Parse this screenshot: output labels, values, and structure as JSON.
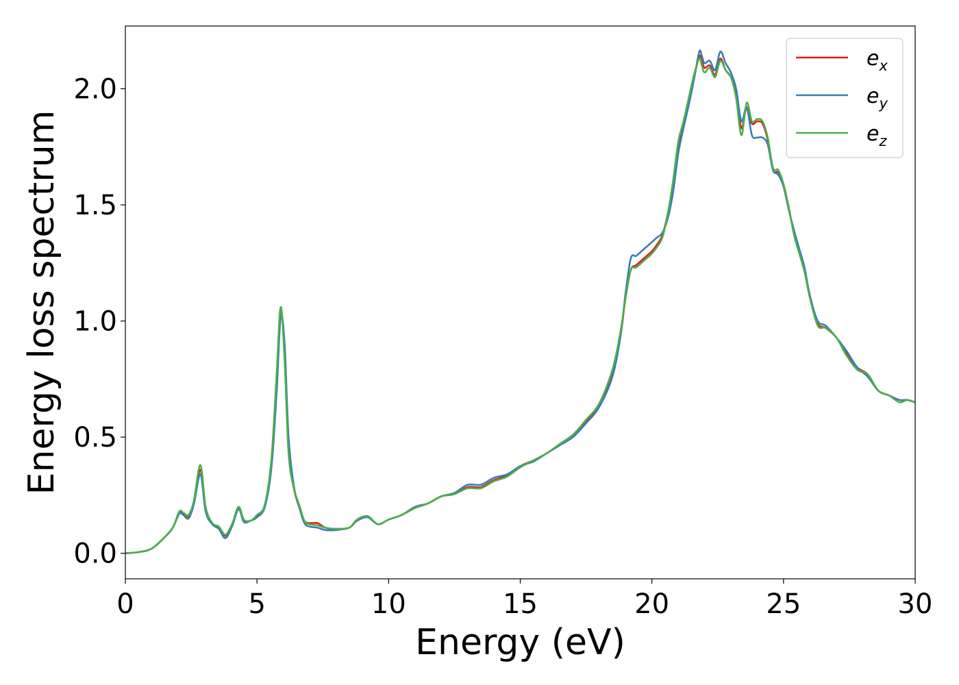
{
  "chart_data": {
    "type": "line",
    "xlabel": "Energy (eV)",
    "ylabel": "Energy loss spectrum",
    "xlim": [
      0,
      30
    ],
    "ylim": [
      -0.11,
      2.27
    ],
    "x_ticks": [
      0,
      5,
      10,
      15,
      20,
      25,
      30
    ],
    "x_tick_labels": [
      "0",
      "5",
      "10",
      "15",
      "20",
      "25",
      "30"
    ],
    "y_ticks": [
      0.0,
      0.5,
      1.0,
      1.5,
      2.0
    ],
    "y_tick_labels": [
      "0.0",
      "0.5",
      "1.0",
      "1.5",
      "2.0"
    ],
    "grid": false,
    "legend_position": "top-right",
    "series": [
      {
        "name": "e_x",
        "label_base": "e",
        "label_sub": "x",
        "color": "#e41a1c",
        "x": [
          0,
          0.5,
          1.0,
          1.5,
          1.8,
          2.05,
          2.2,
          2.4,
          2.6,
          2.85,
          3.05,
          3.3,
          3.55,
          3.8,
          4.05,
          4.3,
          4.5,
          4.75,
          5.0,
          5.3,
          5.55,
          5.75,
          5.9,
          6.05,
          6.2,
          6.4,
          6.6,
          6.8,
          7.0,
          7.3,
          7.6,
          8.0,
          8.5,
          8.8,
          9.2,
          9.6,
          10.0,
          10.5,
          11.0,
          11.5,
          12.0,
          12.5,
          13.0,
          13.5,
          14.0,
          14.5,
          15.0,
          15.5,
          16.0,
          16.5,
          17.0,
          17.5,
          18.0,
          18.5,
          18.8,
          19.0,
          19.2,
          19.4,
          19.6,
          19.8,
          20.0,
          20.2,
          20.4,
          20.6,
          20.8,
          21.0,
          21.2,
          21.4,
          21.6,
          21.8,
          21.9,
          22.0,
          22.2,
          22.4,
          22.6,
          22.8,
          23.0,
          23.2,
          23.4,
          23.6,
          23.8,
          24.0,
          24.2,
          24.4,
          24.6,
          24.8,
          25.0,
          25.2,
          25.4,
          25.6,
          25.8,
          26.0,
          26.3,
          26.6,
          27.0,
          27.4,
          27.8,
          28.2,
          28.6,
          29.0,
          29.4,
          29.7,
          30.0
        ],
        "values": [
          0.0,
          0.005,
          0.02,
          0.07,
          0.11,
          0.175,
          0.17,
          0.16,
          0.22,
          0.36,
          0.19,
          0.13,
          0.11,
          0.075,
          0.12,
          0.195,
          0.14,
          0.14,
          0.16,
          0.21,
          0.4,
          0.75,
          1.04,
          0.85,
          0.45,
          0.28,
          0.2,
          0.14,
          0.13,
          0.13,
          0.11,
          0.105,
          0.11,
          0.14,
          0.155,
          0.125,
          0.145,
          0.165,
          0.195,
          0.215,
          0.245,
          0.255,
          0.285,
          0.285,
          0.315,
          0.335,
          0.375,
          0.4,
          0.43,
          0.47,
          0.51,
          0.57,
          0.64,
          0.77,
          0.93,
          1.1,
          1.22,
          1.24,
          1.26,
          1.28,
          1.3,
          1.33,
          1.37,
          1.46,
          1.58,
          1.75,
          1.84,
          1.95,
          2.05,
          2.14,
          2.12,
          2.09,
          2.1,
          2.06,
          2.13,
          2.08,
          2.05,
          1.98,
          1.83,
          1.92,
          1.85,
          1.86,
          1.85,
          1.78,
          1.65,
          1.64,
          1.58,
          1.48,
          1.38,
          1.3,
          1.22,
          1.11,
          0.99,
          0.97,
          0.93,
          0.86,
          0.8,
          0.77,
          0.7,
          0.68,
          0.66,
          0.66,
          0.65
        ]
      },
      {
        "name": "e_y",
        "label_base": "e",
        "label_sub": "y",
        "color": "#377eb8",
        "x": [
          0,
          0.5,
          1.0,
          1.5,
          1.8,
          2.05,
          2.2,
          2.4,
          2.6,
          2.85,
          3.05,
          3.3,
          3.55,
          3.8,
          4.05,
          4.3,
          4.5,
          4.75,
          5.0,
          5.3,
          5.55,
          5.75,
          5.9,
          6.05,
          6.2,
          6.4,
          6.6,
          6.8,
          7.0,
          7.3,
          7.6,
          8.0,
          8.5,
          8.8,
          9.2,
          9.6,
          10.0,
          10.5,
          11.0,
          11.5,
          12.0,
          12.5,
          13.0,
          13.5,
          14.0,
          14.5,
          15.0,
          15.5,
          16.0,
          16.5,
          17.0,
          17.5,
          18.0,
          18.5,
          18.8,
          19.0,
          19.2,
          19.4,
          19.6,
          19.8,
          20.0,
          20.2,
          20.4,
          20.6,
          20.8,
          21.0,
          21.2,
          21.4,
          21.6,
          21.8,
          21.9,
          22.0,
          22.2,
          22.4,
          22.6,
          22.8,
          23.0,
          23.2,
          23.4,
          23.6,
          23.8,
          24.0,
          24.2,
          24.4,
          24.6,
          24.8,
          25.0,
          25.2,
          25.4,
          25.6,
          25.8,
          26.0,
          26.3,
          26.6,
          27.0,
          27.4,
          27.8,
          28.2,
          28.6,
          29.0,
          29.4,
          29.7,
          30.0
        ],
        "values": [
          0.0,
          0.005,
          0.02,
          0.07,
          0.11,
          0.17,
          0.165,
          0.15,
          0.21,
          0.34,
          0.18,
          0.125,
          0.105,
          0.065,
          0.115,
          0.19,
          0.135,
          0.14,
          0.155,
          0.2,
          0.37,
          0.7,
          1.02,
          0.9,
          0.5,
          0.29,
          0.2,
          0.13,
          0.115,
          0.11,
          0.1,
          0.1,
          0.11,
          0.14,
          0.155,
          0.125,
          0.145,
          0.165,
          0.2,
          0.215,
          0.245,
          0.26,
          0.295,
          0.295,
          0.325,
          0.34,
          0.375,
          0.395,
          0.43,
          0.465,
          0.5,
          0.56,
          0.63,
          0.76,
          0.93,
          1.12,
          1.27,
          1.28,
          1.3,
          1.32,
          1.34,
          1.36,
          1.38,
          1.44,
          1.55,
          1.72,
          1.83,
          1.93,
          2.04,
          2.16,
          2.14,
          2.11,
          2.12,
          2.08,
          2.16,
          2.11,
          2.07,
          2.0,
          1.86,
          1.92,
          1.8,
          1.79,
          1.79,
          1.76,
          1.65,
          1.63,
          1.58,
          1.48,
          1.39,
          1.31,
          1.23,
          1.11,
          1.0,
          0.98,
          0.93,
          0.87,
          0.8,
          0.76,
          0.7,
          0.68,
          0.66,
          0.66,
          0.65
        ]
      },
      {
        "name": "e_z",
        "label_base": "e",
        "label_sub": "z",
        "color": "#4daf4a",
        "x": [
          0,
          0.5,
          1.0,
          1.5,
          1.8,
          2.05,
          2.2,
          2.4,
          2.6,
          2.85,
          3.05,
          3.3,
          3.55,
          3.8,
          4.05,
          4.3,
          4.5,
          4.75,
          5.0,
          5.3,
          5.55,
          5.75,
          5.9,
          6.05,
          6.2,
          6.4,
          6.6,
          6.8,
          7.0,
          7.3,
          7.6,
          8.0,
          8.5,
          8.8,
          9.2,
          9.6,
          10.0,
          10.5,
          11.0,
          11.5,
          12.0,
          12.5,
          13.0,
          13.5,
          14.0,
          14.5,
          15.0,
          15.5,
          16.0,
          16.5,
          17.0,
          17.5,
          18.0,
          18.5,
          18.8,
          19.0,
          19.2,
          19.4,
          19.6,
          19.8,
          20.0,
          20.2,
          20.4,
          20.6,
          20.8,
          21.0,
          21.2,
          21.4,
          21.6,
          21.8,
          21.9,
          22.0,
          22.2,
          22.4,
          22.6,
          22.8,
          23.0,
          23.2,
          23.4,
          23.6,
          23.8,
          24.0,
          24.2,
          24.4,
          24.6,
          24.8,
          25.0,
          25.2,
          25.4,
          25.6,
          25.8,
          26.0,
          26.3,
          26.6,
          27.0,
          27.4,
          27.8,
          28.2,
          28.6,
          29.0,
          29.4,
          29.7,
          30.0
        ],
        "values": [
          0.0,
          0.005,
          0.02,
          0.07,
          0.11,
          0.18,
          0.175,
          0.165,
          0.225,
          0.38,
          0.2,
          0.13,
          0.115,
          0.08,
          0.125,
          0.2,
          0.145,
          0.14,
          0.165,
          0.21,
          0.41,
          0.78,
          1.06,
          0.83,
          0.43,
          0.28,
          0.21,
          0.14,
          0.125,
          0.12,
          0.11,
          0.105,
          0.11,
          0.145,
          0.16,
          0.125,
          0.145,
          0.165,
          0.195,
          0.215,
          0.245,
          0.255,
          0.28,
          0.28,
          0.31,
          0.33,
          0.37,
          0.4,
          0.43,
          0.47,
          0.51,
          0.575,
          0.645,
          0.79,
          0.95,
          1.1,
          1.22,
          1.23,
          1.25,
          1.27,
          1.29,
          1.32,
          1.36,
          1.46,
          1.6,
          1.77,
          1.86,
          1.96,
          2.06,
          2.13,
          2.1,
          2.07,
          2.09,
          2.05,
          2.12,
          2.08,
          2.05,
          1.96,
          1.8,
          1.94,
          1.86,
          1.87,
          1.86,
          1.79,
          1.66,
          1.65,
          1.59,
          1.49,
          1.37,
          1.29,
          1.21,
          1.1,
          0.98,
          0.97,
          0.93,
          0.85,
          0.79,
          0.77,
          0.7,
          0.68,
          0.65,
          0.66,
          0.65
        ]
      }
    ]
  }
}
